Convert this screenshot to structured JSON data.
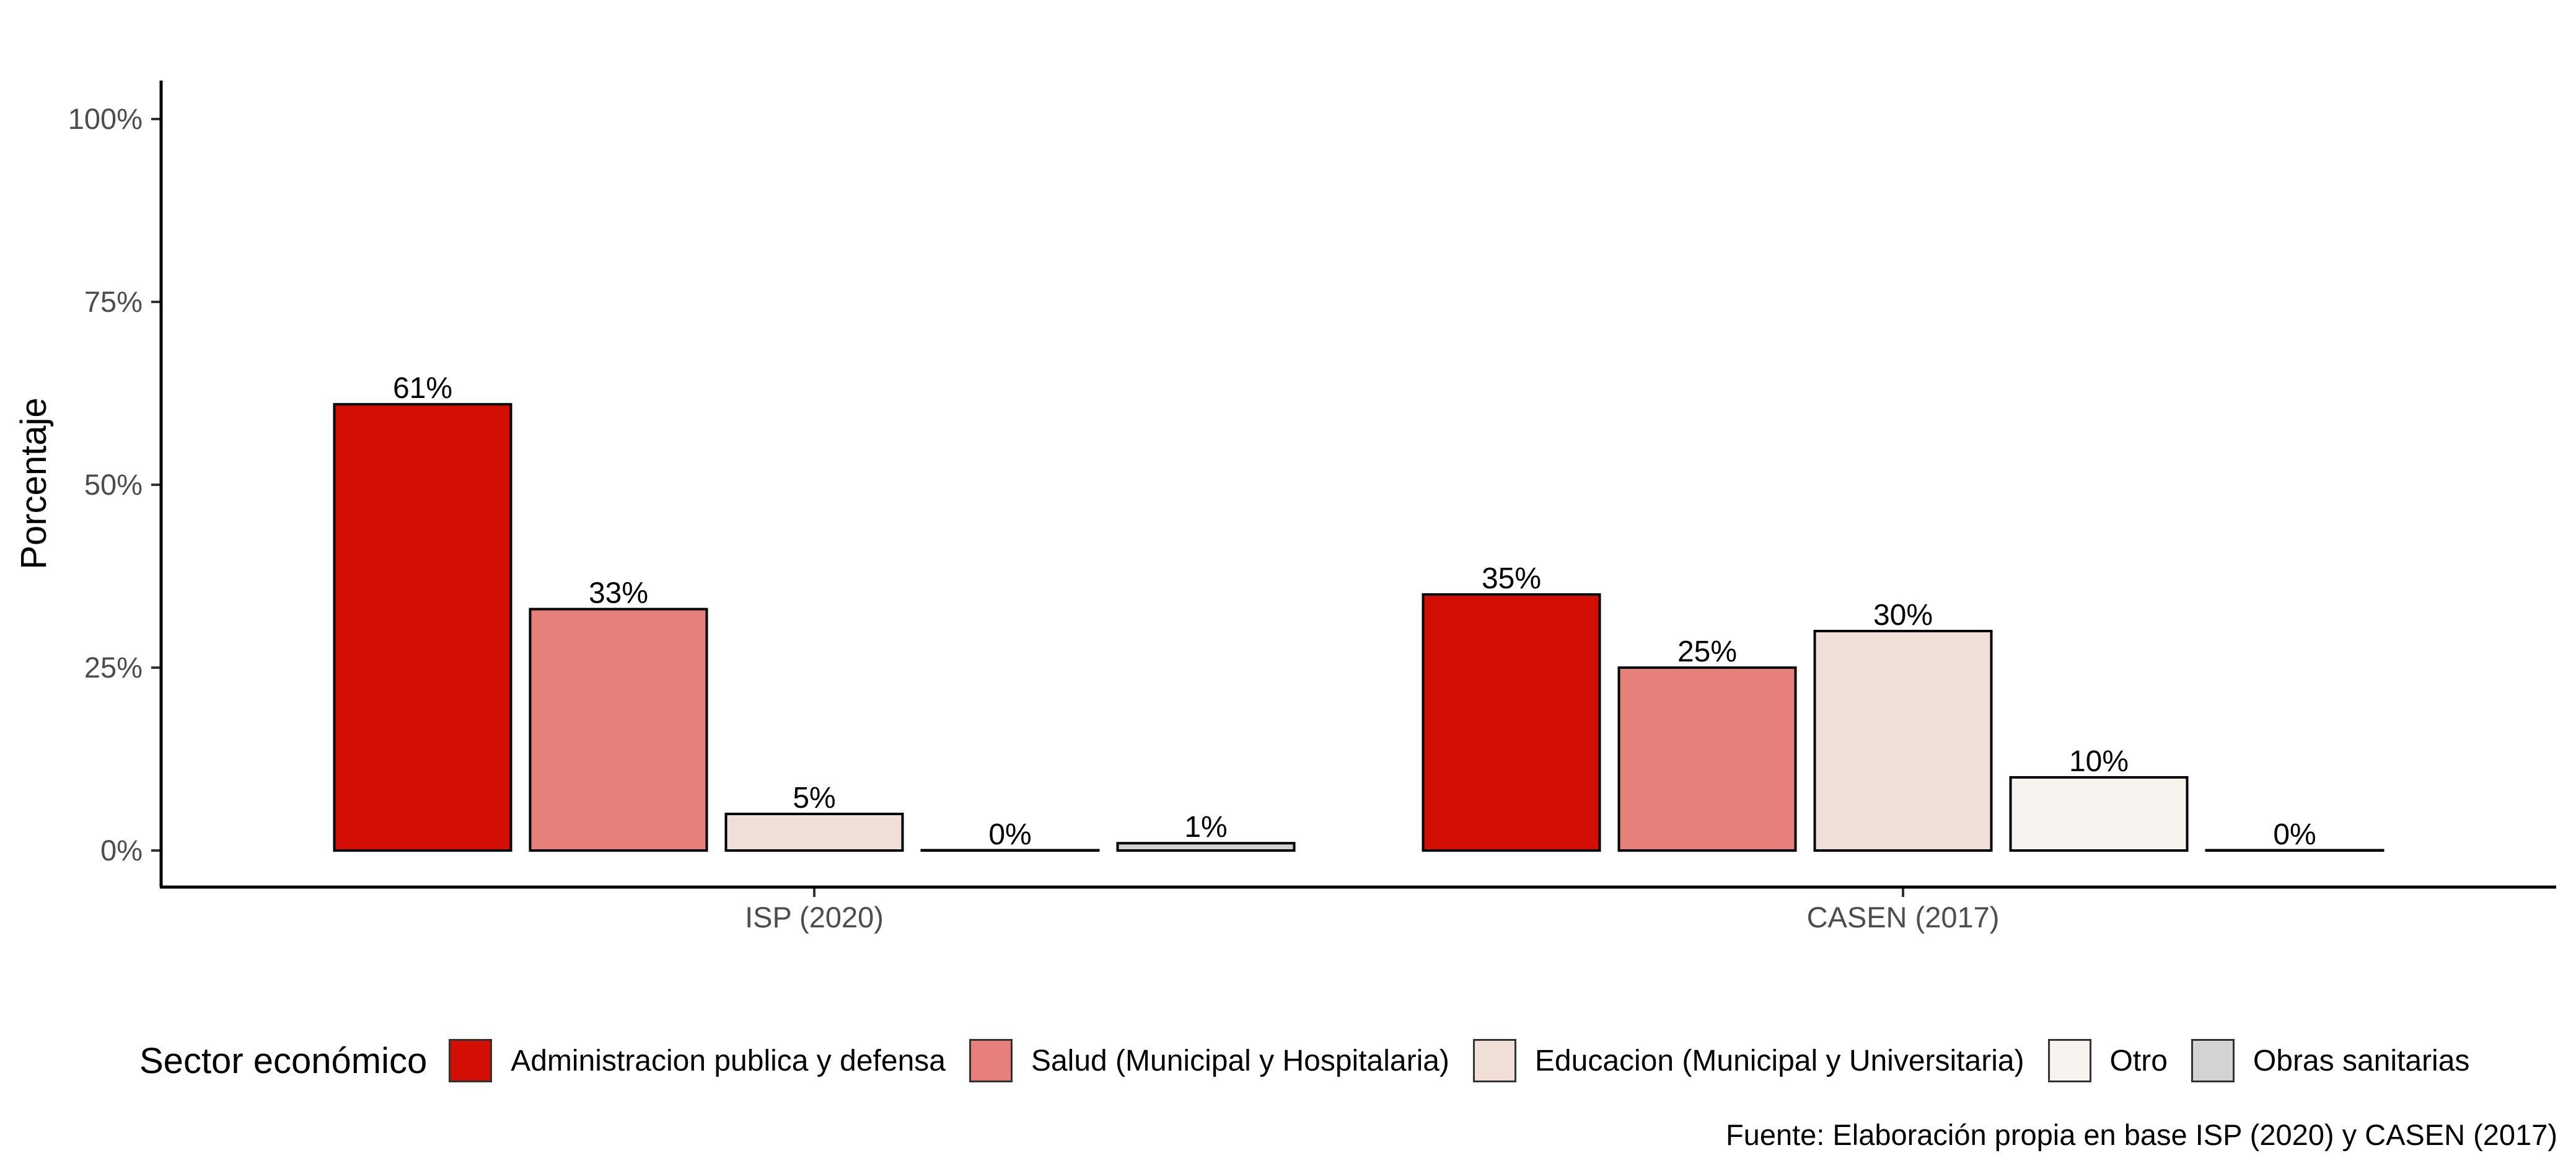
{
  "chart_data": {
    "type": "bar",
    "categories": [
      "ISP (2020)",
      "CASEN (2017)"
    ],
    "series": [
      {
        "name": "Administracion publica y defensa",
        "color": "#d30e04",
        "values": [
          61,
          35
        ],
        "labels": [
          "61%",
          "35%"
        ]
      },
      {
        "name": "Salud (Municipal y Hospitalaria)",
        "color": "#e77f7b",
        "values": [
          33,
          25
        ],
        "labels": [
          "33%",
          "25%"
        ]
      },
      {
        "name": "Educacion (Municipal y Universitaria)",
        "color": "#efdfd6",
        "values": [
          5,
          30
        ],
        "labels": [
          "5%",
          "30%"
        ]
      },
      {
        "name": "Otro",
        "color": "#f7f3ee",
        "values": [
          0,
          10
        ],
        "labels": [
          "0%",
          "10%"
        ]
      },
      {
        "name": "Obras sanitarias",
        "color": "#d3d3d3",
        "values": [
          1,
          0
        ],
        "labels": [
          "1%",
          "0%"
        ]
      }
    ],
    "ylabel": "Porcentaje",
    "xlabel": "",
    "ylim": [
      0,
      100
    ],
    "yticks": [
      0,
      25,
      50,
      75,
      100
    ],
    "ytick_labels": [
      "0%",
      "25%",
      "50%",
      "75%",
      "100%"
    ],
    "legend_title": "Sector económico",
    "legend_position": "bottom",
    "grid": false,
    "caption": "Fuente: Elaboración propia en base ISP (2020) y CASEN (2017)"
  }
}
